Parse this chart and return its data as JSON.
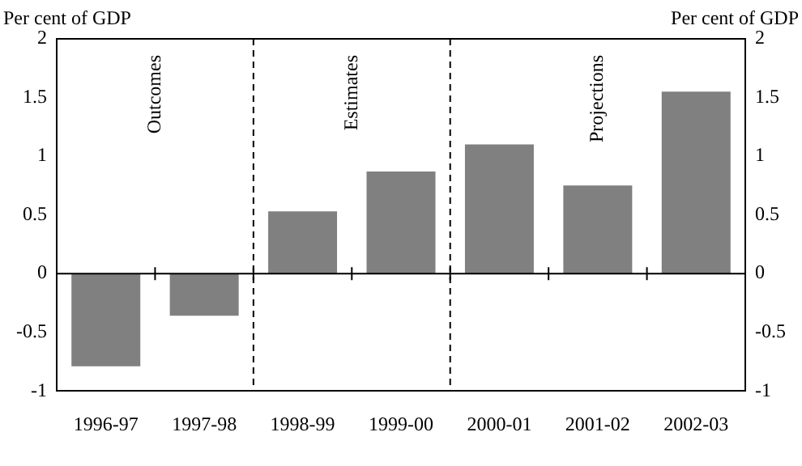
{
  "chart_data": {
    "type": "bar",
    "ylabel": "Per cent of GDP",
    "y2label": "Per cent of GDP",
    "categories": [
      "1996-97",
      "1997-98",
      "1998-99",
      "1999-00",
      "2000-01",
      "2001-02",
      "2002-03"
    ],
    "series": [
      {
        "color": "#808080",
        "values": [
          -0.79,
          -0.36,
          0.53,
          0.87,
          1.1,
          0.75,
          1.55
        ]
      }
    ],
    "ylim": [
      -1,
      2
    ],
    "yticks": [
      -1,
      -0.5,
      0,
      0.5,
      1,
      1.5,
      2
    ],
    "y2lim": [
      -1,
      2
    ],
    "y2ticks": [
      -1,
      -0.5,
      0,
      0.5,
      1,
      1.5,
      2
    ],
    "annotations": [
      "Outcomes",
      "Estimates",
      "Projections"
    ],
    "grid": false,
    "legend": false
  }
}
